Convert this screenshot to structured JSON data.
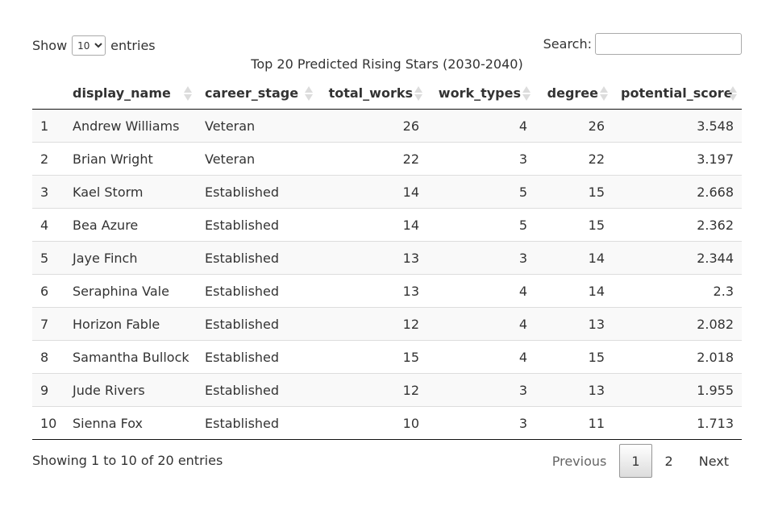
{
  "length": {
    "show_label": "Show",
    "selected": "10",
    "entries_label": "entries"
  },
  "search": {
    "label": "Search:",
    "value": ""
  },
  "caption": "Top 20 Predicted Rising Stars (2030-2040)",
  "columns": [
    "display_name",
    "career_stage",
    "total_works",
    "work_types",
    "degree",
    "potential_score"
  ],
  "rows": [
    {
      "idx": "1",
      "display_name": "Andrew Williams",
      "career_stage": "Veteran",
      "total_works": "26",
      "work_types": "4",
      "degree": "26",
      "potential_score": "3.548"
    },
    {
      "idx": "2",
      "display_name": "Brian Wright",
      "career_stage": "Veteran",
      "total_works": "22",
      "work_types": "3",
      "degree": "22",
      "potential_score": "3.197"
    },
    {
      "idx": "3",
      "display_name": "Kael Storm",
      "career_stage": "Established",
      "total_works": "14",
      "work_types": "5",
      "degree": "15",
      "potential_score": "2.668"
    },
    {
      "idx": "4",
      "display_name": "Bea Azure",
      "career_stage": "Established",
      "total_works": "14",
      "work_types": "5",
      "degree": "15",
      "potential_score": "2.362"
    },
    {
      "idx": "5",
      "display_name": "Jaye Finch",
      "career_stage": "Established",
      "total_works": "13",
      "work_types": "3",
      "degree": "14",
      "potential_score": "2.344"
    },
    {
      "idx": "6",
      "display_name": "Seraphina Vale",
      "career_stage": "Established",
      "total_works": "13",
      "work_types": "4",
      "degree": "14",
      "potential_score": "2.3"
    },
    {
      "idx": "7",
      "display_name": "Horizon Fable",
      "career_stage": "Established",
      "total_works": "12",
      "work_types": "4",
      "degree": "13",
      "potential_score": "2.082"
    },
    {
      "idx": "8",
      "display_name": "Samantha Bullock",
      "career_stage": "Established",
      "total_works": "15",
      "work_types": "4",
      "degree": "15",
      "potential_score": "2.018"
    },
    {
      "idx": "9",
      "display_name": "Jude Rivers",
      "career_stage": "Established",
      "total_works": "12",
      "work_types": "3",
      "degree": "13",
      "potential_score": "1.955"
    },
    {
      "idx": "10",
      "display_name": "Sienna Fox",
      "career_stage": "Established",
      "total_works": "10",
      "work_types": "3",
      "degree": "11",
      "potential_score": "1.713"
    }
  ],
  "info": "Showing 1 to 10 of 20 entries",
  "pagination": {
    "previous": "Previous",
    "pages": [
      "1",
      "2"
    ],
    "current": "1",
    "next": "Next"
  }
}
